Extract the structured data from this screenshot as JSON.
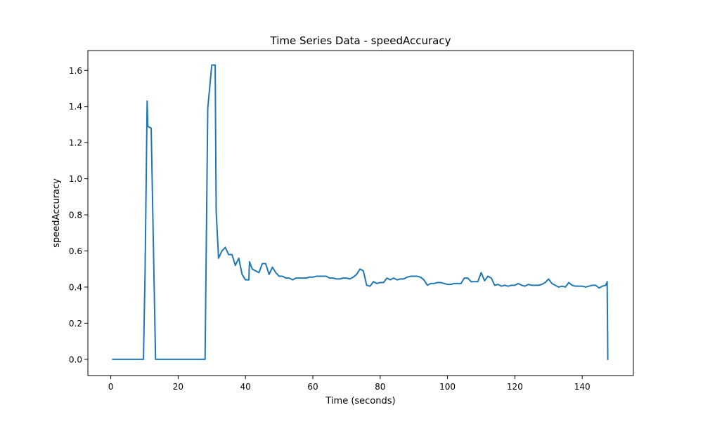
{
  "chart_data": {
    "type": "line",
    "title": "Time Series Data - speedAccuracy",
    "xlabel": "Time (seconds)",
    "ylabel": "speedAccuracy",
    "xlim": [
      -6.8,
      155.2
    ],
    "ylim": [
      -0.09,
      1.71
    ],
    "xticks": [
      0,
      20,
      40,
      60,
      80,
      100,
      120,
      140
    ],
    "yticks": [
      0.0,
      0.2,
      0.4,
      0.6,
      0.8,
      1.0,
      1.2,
      1.4,
      1.6
    ],
    "xtick_labels": [
      "0",
      "20",
      "40",
      "60",
      "80",
      "100",
      "120",
      "140"
    ],
    "ytick_labels": [
      "0.0",
      "0.2",
      "0.4",
      "0.6",
      "0.8",
      "1.0",
      "1.2",
      "1.4",
      "1.6"
    ],
    "grid": false,
    "legend": "none",
    "series": [
      {
        "color": "#1f77b4",
        "x": [
          0.6,
          9.7,
          10.2,
          10.8,
          11.0,
          12.0,
          13.3,
          28.0,
          28.8,
          30.0,
          31.0,
          31.3,
          32.0,
          33.0,
          34.0,
          35.0,
          36.0,
          37.0,
          38.0,
          39.0,
          40.0,
          41.0,
          41.2,
          42.0,
          43.0,
          44.0,
          45.0,
          46.0,
          47.0,
          48.0,
          49.0,
          50.0,
          51.0,
          52.0,
          53.0,
          54.0,
          55.0,
          56.0,
          57.0,
          58.0,
          59.0,
          60.0,
          61.0,
          62.0,
          63.0,
          64.0,
          65.0,
          66.0,
          67.0,
          68.0,
          69.0,
          70.0,
          71.0,
          72.0,
          73.0,
          74.0,
          75.0,
          76.0,
          77.0,
          78.0,
          79.0,
          80.0,
          81.0,
          82.0,
          83.0,
          84.0,
          85.0,
          86.0,
          87.0,
          88.0,
          89.0,
          90.0,
          91.0,
          92.0,
          93.0,
          94.0,
          95.0,
          96.0,
          97.0,
          98.0,
          99.0,
          100.0,
          101.0,
          102.0,
          103.0,
          104.0,
          105.0,
          106.0,
          107.0,
          108.0,
          109.0,
          110.0,
          111.0,
          112.0,
          113.0,
          114.0,
          115.0,
          116.0,
          117.0,
          118.0,
          119.0,
          120.0,
          121.0,
          122.0,
          123.0,
          124.0,
          125.0,
          126.0,
          127.0,
          128.0,
          129.0,
          130.0,
          131.0,
          132.0,
          133.0,
          134.0,
          135.0,
          136.0,
          137.0,
          138.0,
          139.0,
          140.0,
          141.0,
          142.0,
          143.0,
          144.0,
          145.0,
          146.0,
          147.0,
          147.4,
          147.6
        ],
        "y": [
          0.0,
          0.0,
          0.5,
          1.43,
          1.29,
          1.28,
          0.0,
          0.0,
          1.39,
          1.63,
          1.63,
          0.82,
          0.56,
          0.6,
          0.62,
          0.58,
          0.58,
          0.52,
          0.56,
          0.47,
          0.44,
          0.44,
          0.54,
          0.5,
          0.49,
          0.48,
          0.53,
          0.53,
          0.47,
          0.51,
          0.48,
          0.46,
          0.46,
          0.45,
          0.45,
          0.44,
          0.45,
          0.45,
          0.45,
          0.45,
          0.455,
          0.455,
          0.46,
          0.46,
          0.46,
          0.46,
          0.45,
          0.45,
          0.445,
          0.445,
          0.45,
          0.45,
          0.445,
          0.455,
          0.47,
          0.5,
          0.49,
          0.41,
          0.405,
          0.43,
          0.42,
          0.425,
          0.425,
          0.45,
          0.44,
          0.45,
          0.44,
          0.445,
          0.445,
          0.455,
          0.46,
          0.46,
          0.46,
          0.455,
          0.44,
          0.41,
          0.42,
          0.42,
          0.425,
          0.425,
          0.42,
          0.415,
          0.415,
          0.42,
          0.42,
          0.42,
          0.45,
          0.45,
          0.43,
          0.43,
          0.43,
          0.48,
          0.435,
          0.46,
          0.45,
          0.41,
          0.415,
          0.405,
          0.41,
          0.405,
          0.41,
          0.41,
          0.42,
          0.41,
          0.405,
          0.415,
          0.41,
          0.41,
          0.41,
          0.415,
          0.425,
          0.445,
          0.42,
          0.41,
          0.4,
          0.405,
          0.4,
          0.425,
          0.41,
          0.405,
          0.405,
          0.405,
          0.4,
          0.405,
          0.41,
          0.41,
          0.395,
          0.405,
          0.41,
          0.43,
          0.0
        ]
      }
    ]
  }
}
